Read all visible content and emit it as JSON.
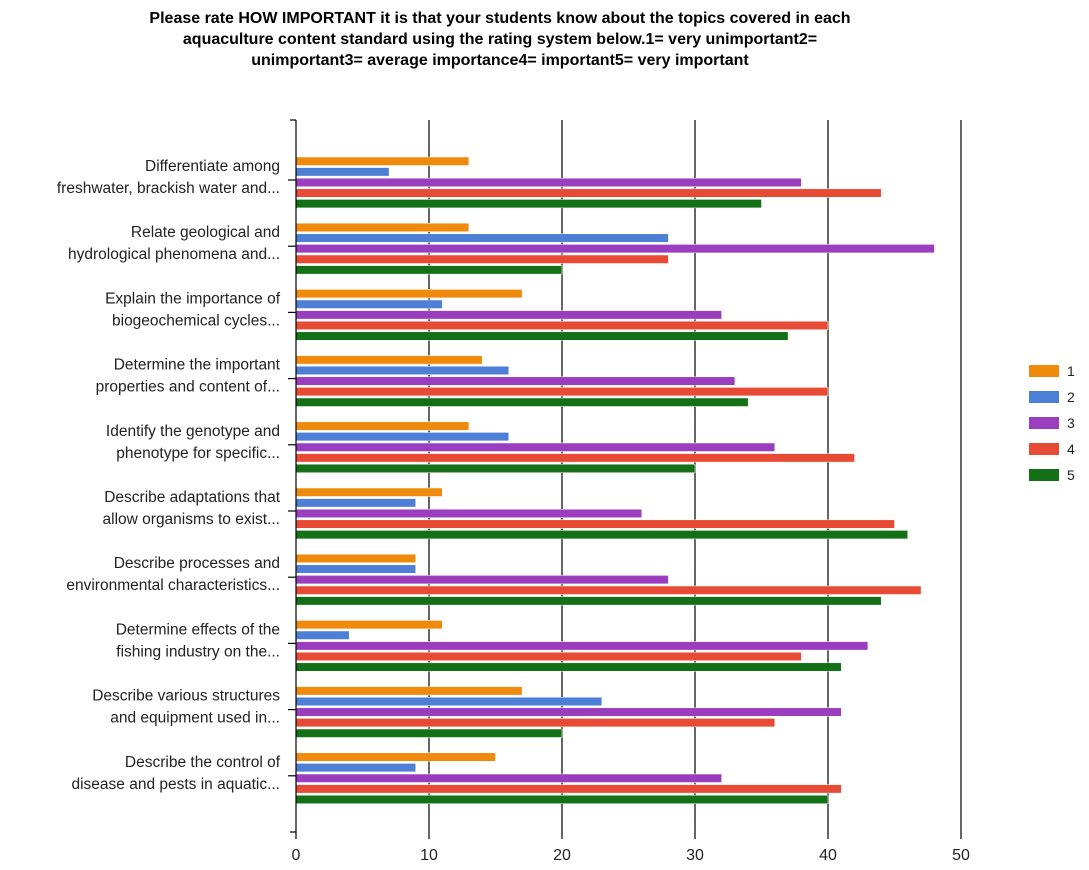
{
  "chart_data": {
    "type": "bar",
    "orientation": "horizontal",
    "title": "Please rate HOW IMPORTANT it is that your students know about the topics covered in each\naquaculture content standard using the rating system below.1= very unimportant2=\nunimportant3= average importance4= important5= very important",
    "categories": [
      [
        "Differentiate among",
        "freshwater, brackish water and..."
      ],
      [
        "Relate geological and",
        "hydrological phenomena and..."
      ],
      [
        "Explain the importance of",
        "biogeochemical cycles..."
      ],
      [
        "Determine the important",
        "properties and content of..."
      ],
      [
        "Identify the genotype and",
        "phenotype for specific..."
      ],
      [
        "Describe adaptations that",
        "allow organisms to exist..."
      ],
      [
        "Describe processes and",
        "environmental characteristics..."
      ],
      [
        "Determine effects of the",
        "fishing industry on the..."
      ],
      [
        "Describe various structures",
        "and equipment used in..."
      ],
      [
        "Describe the control of",
        "disease and pests in aquatic..."
      ]
    ],
    "series": [
      {
        "name": "1",
        "color": "#ef8a0c",
        "values": [
          13,
          13,
          17,
          14,
          13,
          11,
          9,
          11,
          17,
          15
        ]
      },
      {
        "name": "2",
        "color": "#4e7fd6",
        "values": [
          7,
          28,
          11,
          16,
          16,
          9,
          9,
          4,
          23,
          9
        ]
      },
      {
        "name": "3",
        "color": "#9b3dbf",
        "values": [
          38,
          48,
          32,
          33,
          36,
          26,
          28,
          43,
          41,
          32
        ]
      },
      {
        "name": "4",
        "color": "#e84b35",
        "values": [
          44,
          28,
          40,
          40,
          42,
          45,
          47,
          38,
          36,
          41
        ]
      },
      {
        "name": "5",
        "color": "#137016",
        "values": [
          35,
          20,
          37,
          34,
          30,
          46,
          44,
          41,
          20,
          40
        ]
      }
    ],
    "xlim": [
      0,
      50
    ],
    "xticks": [
      0,
      10,
      20,
      30,
      40,
      50
    ],
    "grid": true,
    "legend_position": "right"
  }
}
